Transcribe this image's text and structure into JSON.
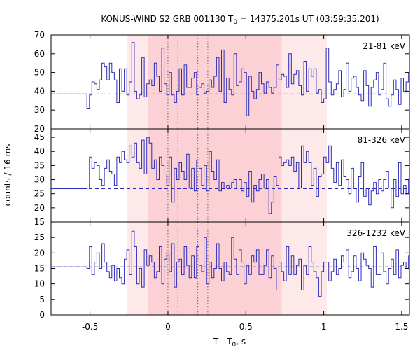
{
  "title": {
    "prefix": "KONUS-WIND S2 GRB 001130 T",
    "sub": "0",
    "suffix": " = 14375.201s UT (03:59:35.201)"
  },
  "xlabel": {
    "prefix": "T - T",
    "sub": "0",
    "suffix": ", s"
  },
  "ylabel": "counts / 16 ms",
  "colors": {
    "line": "#2b2bb8",
    "outer_band": "#fde8ea",
    "inner_band": "#fbd1d6",
    "dotted": "#444444"
  },
  "chart_data": {
    "type": "line",
    "style": "step",
    "xlim": [
      -0.75,
      1.55
    ],
    "x_ticks": [
      -0.5,
      0,
      0.5,
      1,
      1.5
    ],
    "x_tick_labels": [
      "-0.5",
      "0",
      "0.5",
      "1",
      "1.5"
    ],
    "bin_width": 0.016,
    "shaded_outer": [
      -0.26,
      1.02
    ],
    "shaded_inner": [
      -0.13,
      0.73
    ],
    "dotted_lines": [
      0,
      0.064,
      0.128,
      0.192,
      0.256
    ],
    "panels": [
      {
        "label": "21-81 keV",
        "ylim": [
          20,
          70
        ],
        "y_ticks": [
          30,
          40,
          50,
          60,
          70
        ],
        "y_tick_labels": [
          "30",
          "40",
          "50",
          "60",
          "70"
        ],
        "background": 38.5,
        "bins_start": -0.52,
        "values": [
          31,
          38,
          45,
          44,
          41,
          46,
          55,
          53,
          46,
          55,
          50,
          46,
          34,
          52,
          40,
          52,
          38,
          45,
          66,
          40,
          36,
          38,
          58,
          37,
          44,
          46,
          43,
          55,
          48,
          40,
          63,
          44,
          38,
          50,
          38,
          34,
          40,
          52,
          38,
          54,
          42,
          42,
          47,
          50,
          38,
          42,
          44,
          39,
          40,
          46,
          42,
          48,
          58,
          40,
          62,
          34,
          47,
          41,
          38,
          60,
          43,
          45,
          52,
          50,
          27,
          48,
          40,
          36,
          41,
          50,
          44,
          39,
          45,
          42,
          39,
          42,
          54,
          46,
          49,
          48,
          42,
          60,
          44,
          49,
          51,
          43,
          38,
          56,
          40,
          52,
          48,
          52,
          39,
          41,
          34,
          36,
          63,
          45,
          38,
          41,
          44,
          51,
          37,
          41,
          55,
          40,
          47,
          48,
          42,
          38,
          35,
          51,
          43,
          32,
          42,
          46,
          50,
          38,
          41,
          55,
          36,
          32,
          38,
          46,
          41,
          33,
          47,
          40,
          45,
          50,
          48,
          38,
          43,
          45,
          32,
          40,
          56,
          46,
          40,
          38,
          41,
          42,
          45
        ]
      },
      {
        "label": "81-326 keV",
        "ylim": [
          15,
          48
        ],
        "y_ticks": [
          15,
          20,
          25,
          30,
          35,
          40,
          45
        ],
        "y_tick_labels": [
          "15",
          "20",
          "25",
          "30",
          "35",
          "40",
          "45"
        ],
        "background": 26.8,
        "bins_start": -0.52,
        "values": [
          27,
          38,
          34,
          36,
          35,
          30,
          28,
          34,
          37,
          33,
          32,
          28,
          38,
          36,
          40,
          37,
          36,
          42,
          38,
          43,
          36,
          34,
          44,
          32,
          45,
          43,
          34,
          37,
          30,
          38,
          35,
          32,
          28,
          38,
          22,
          34,
          30,
          36,
          33,
          30,
          39,
          27,
          34,
          26,
          37,
          34,
          28,
          35,
          26,
          40,
          33,
          30,
          37,
          26,
          29,
          27,
          28,
          27,
          29,
          30,
          27,
          30,
          26,
          29,
          24,
          33,
          22,
          28,
          26,
          30,
          32,
          27,
          30,
          18,
          22,
          31,
          28,
          38,
          35,
          36,
          37,
          35,
          38,
          33,
          36,
          27,
          42,
          36,
          40,
          36,
          28,
          34,
          24,
          31,
          32,
          38,
          36,
          42,
          34,
          29,
          36,
          28,
          37,
          31,
          30,
          25,
          34,
          27,
          22,
          31,
          36,
          24,
          27,
          21,
          26,
          29,
          25,
          30,
          26,
          30,
          33,
          27,
          20,
          30,
          24,
          36,
          25,
          28,
          25,
          30,
          21,
          28,
          18,
          30,
          23,
          35,
          26,
          30,
          28,
          24,
          34,
          28,
          30
        ]
      },
      {
        "label": "326-1232 keV",
        "ylim": [
          0,
          30
        ],
        "y_ticks": [
          0,
          5,
          10,
          15,
          20,
          25
        ],
        "y_tick_labels": [
          "0",
          "5",
          "10",
          "15",
          "20",
          "25"
        ],
        "background": 15.5,
        "bins_start": -0.52,
        "values": [
          15,
          22,
          13,
          17,
          20,
          15,
          23,
          17,
          14,
          12,
          16,
          11,
          15,
          12,
          10,
          18,
          21,
          13,
          27,
          22,
          10,
          15,
          9,
          21,
          16,
          19,
          17,
          12,
          14,
          22,
          10,
          18,
          20,
          14,
          23,
          9,
          17,
          18,
          13,
          22,
          16,
          12,
          19,
          12,
          22,
          16,
          14,
          25,
          10,
          17,
          12,
          15,
          23,
          15,
          11,
          17,
          14,
          13,
          25,
          18,
          13,
          21,
          17,
          10,
          16,
          13,
          19,
          17,
          21,
          13,
          13,
          16,
          21,
          12,
          19,
          15,
          8,
          17,
          14,
          11,
          22,
          13,
          19,
          13,
          16,
          18,
          8,
          16,
          13,
          22,
          17,
          14,
          12,
          6,
          14,
          17,
          17,
          11,
          14,
          18,
          13,
          15,
          19,
          17,
          21,
          12,
          14,
          19,
          15,
          11,
          20,
          18,
          16,
          15,
          9,
          22,
          13,
          13,
          20,
          14,
          10,
          15,
          18,
          13,
          21,
          12,
          16,
          17,
          15,
          19,
          14,
          22,
          13,
          20,
          13,
          15,
          12,
          18,
          16,
          20,
          11,
          14,
          16
        ]
      }
    ]
  }
}
